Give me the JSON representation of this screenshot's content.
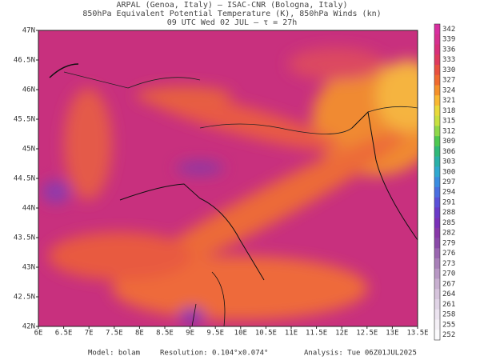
{
  "header": {
    "line1": "ARPAL (Genoa, Italy)  –  ISAC-CNR (Bologna, Italy)",
    "line2": "850hPa Equivalent Potential Temperature (K), 850hPa Winds (kn)",
    "line3": "09 UTC Wed 02 JUL   –   τ = 27h"
  },
  "map": {
    "lon_ticks": [
      {
        "value": 6,
        "label": "6E"
      },
      {
        "value": 6.5,
        "label": "6.5E"
      },
      {
        "value": 7,
        "label": "7E"
      },
      {
        "value": 7.5,
        "label": "7.5E"
      },
      {
        "value": 8,
        "label": "8E"
      },
      {
        "value": 8.5,
        "label": "8.5E"
      },
      {
        "value": 9,
        "label": "9E"
      },
      {
        "value": 9.5,
        "label": "9.5E"
      },
      {
        "value": 10,
        "label": "10E"
      },
      {
        "value": 10.5,
        "label": "10.5E"
      },
      {
        "value": 11,
        "label": "11E"
      },
      {
        "value": 11.5,
        "label": "11.5E"
      },
      {
        "value": 12,
        "label": "12E"
      },
      {
        "value": 12.5,
        "label": "12.5E"
      },
      {
        "value": 13,
        "label": "13E"
      },
      {
        "value": 13.5,
        "label": "13.5E"
      }
    ],
    "lat_ticks": [
      {
        "value": 47,
        "label": "47N"
      },
      {
        "value": 46.5,
        "label": "46.5N"
      },
      {
        "value": 46,
        "label": "46N"
      },
      {
        "value": 45.5,
        "label": "45.5N"
      },
      {
        "value": 45,
        "label": "45N"
      },
      {
        "value": 44.5,
        "label": "44.5N"
      },
      {
        "value": 44,
        "label": "44N"
      },
      {
        "value": 43.5,
        "label": "43.5N"
      },
      {
        "value": 43,
        "label": "43N"
      },
      {
        "value": 42.5,
        "label": "42.5N"
      },
      {
        "value": 42,
        "label": "42N"
      }
    ],
    "lonlim": [
      6,
      13.5
    ],
    "latlim": [
      42,
      47
    ]
  },
  "colorbar": {
    "levels": [
      342,
      339,
      336,
      333,
      330,
      327,
      324,
      321,
      318,
      315,
      312,
      309,
      306,
      303,
      300,
      297,
      294,
      291,
      288,
      285,
      282,
      279,
      276,
      273,
      270,
      267,
      264,
      261,
      258,
      255,
      252
    ],
    "colors": [
      "#d82fa0",
      "#d6308f",
      "#d8307a",
      "#de3a5e",
      "#e8503f",
      "#f06a2f",
      "#f5902a",
      "#f9b832",
      "#e9d93a",
      "#c8e040",
      "#8fd84a",
      "#4ec850",
      "#30b878",
      "#2ab0a8",
      "#30a8d0",
      "#3a8ce0",
      "#4a6ee0",
      "#5a50d8",
      "#6a3ac8",
      "#7a30b8",
      "#8838a8",
      "#8a4aa8",
      "#9a66b0",
      "#a880b8",
      "#b898c4",
      "#c8b0d0",
      "#d6c4dc",
      "#e0d4e6",
      "#ece4f0",
      "#f4f0f6",
      "#fbfafc"
    ]
  },
  "footer": {
    "model": "Model: bolam",
    "resolution": "Resolution: 0.104°x0.074°",
    "analysis": "Analysis: Tue 06Z01JUL2025"
  }
}
